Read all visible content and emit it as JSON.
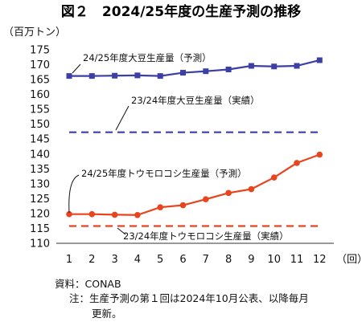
{
  "title": "図２　2024/25年度の生産予測の推移",
  "chart_data": {
    "type": "line",
    "y_unit_label": "（百万トン）",
    "x_unit_label": "（回）",
    "categories": [
      "1",
      "2",
      "3",
      "4",
      "5",
      "6",
      "7",
      "8",
      "9",
      "10",
      "11",
      "12"
    ],
    "ylim": [
      110,
      175
    ],
    "yticks": [
      110,
      115,
      120,
      125,
      130,
      135,
      140,
      145,
      150,
      155,
      160,
      165,
      170,
      175
    ],
    "grid": false,
    "series": [
      {
        "name": "24/25年度大豆生産量（予測）",
        "style": "solid-square",
        "color": "#3b3fa6",
        "values": [
          166.2,
          166.2,
          166.3,
          166.4,
          166.2,
          167.3,
          167.8,
          168.4,
          169.6,
          169.4,
          169.6,
          171.5
        ]
      },
      {
        "name": "23/24年度大豆生産量（実績）",
        "style": "dashed",
        "color": "#3b3fa6",
        "values": [
          147.3,
          147.3,
          147.3,
          147.3,
          147.3,
          147.3,
          147.3,
          147.3,
          147.3,
          147.3,
          147.3,
          147.3
        ]
      },
      {
        "name": "24/25年度トウモロコシ生産量（予測）",
        "style": "solid-circle",
        "color": "#e8451e",
        "values": [
          119.8,
          119.8,
          119.6,
          119.5,
          122.1,
          122.8,
          124.8,
          126.9,
          128.2,
          132.1,
          137.0,
          139.8
        ]
      },
      {
        "name": "23/24年度トウモロコシ生産量（実績）",
        "style": "dashed",
        "color": "#e8451e",
        "values": [
          115.8,
          115.8,
          115.8,
          115.8,
          115.8,
          115.8,
          115.8,
          115.8,
          115.8,
          115.8,
          115.8,
          115.8
        ]
      }
    ]
  },
  "source_label": "資料：CONAB",
  "note_line1": "注：生産予測の第１回は2024年10月公表、以降毎月",
  "note_line2": "更新。"
}
